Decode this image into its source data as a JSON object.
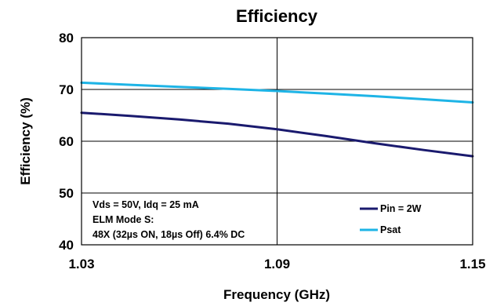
{
  "chart_data": {
    "type": "line",
    "title": "Efficiency",
    "xlabel": "Frequency (GHz)",
    "ylabel": "Efficiency (%)",
    "xlim": [
      1.03,
      1.15
    ],
    "ylim": [
      40,
      80
    ],
    "x_ticks": [
      1.03,
      1.09,
      1.15
    ],
    "x_tick_labels": [
      "1.03",
      "1.09",
      "1.15"
    ],
    "y_ticks": [
      40,
      50,
      60,
      70,
      80
    ],
    "y_tick_labels": [
      "40",
      "50",
      "60",
      "70",
      "80"
    ],
    "grid": true,
    "legend": "bottom-right",
    "series": [
      {
        "name": "Pin = 2W",
        "color": "#1a1a6e",
        "x": [
          1.03,
          1.045,
          1.06,
          1.075,
          1.09,
          1.105,
          1.12,
          1.135,
          1.15
        ],
        "y": [
          65.5,
          64.9,
          64.2,
          63.4,
          62.3,
          61.0,
          59.6,
          58.3,
          57.1
        ]
      },
      {
        "name": "Psat",
        "color": "#1eb4e6",
        "x": [
          1.03,
          1.045,
          1.06,
          1.075,
          1.09,
          1.105,
          1.12,
          1.135,
          1.15
        ],
        "y": [
          71.3,
          70.9,
          70.5,
          70.1,
          69.7,
          69.2,
          68.7,
          68.1,
          67.5
        ]
      }
    ],
    "annotation": [
      "Vds = 50V, Idq = 25 mA",
      "ELM Mode S:",
      "48X (32µs ON, 18µs Off) 6.4% DC"
    ]
  }
}
